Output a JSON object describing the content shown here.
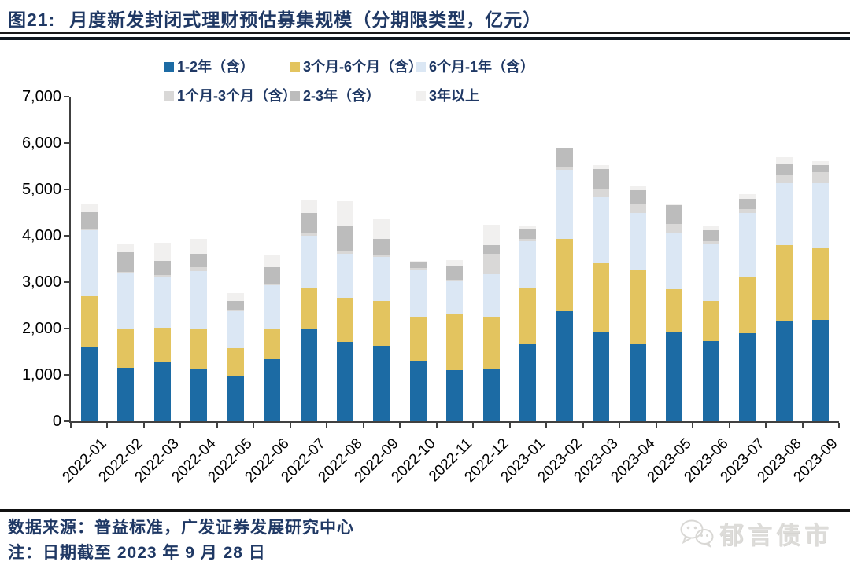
{
  "header": {
    "figure_label": "图21:",
    "title": "月度新发封闭式理财预估募集规模（分期限类型，亿元）"
  },
  "footer": {
    "source_line": "数据来源：普益标准，广发证券发展研究中心",
    "note_line": "注：日期截至 2023 年 9 月 28 日"
  },
  "logo": {
    "icon": "wechat-icon",
    "text": "郁言债市"
  },
  "colors": {
    "title_text": "#1F3864",
    "axis_line": "#404040",
    "axis_text": "#000000",
    "logo_gray": "#dddcd9"
  },
  "chart_data": {
    "type": "bar",
    "stacked": true,
    "title": "月度新发封闭式理财预估募集规模（分期限类型，亿元）",
    "xlabel": "",
    "ylabel": "",
    "ylim": [
      0,
      7000
    ],
    "ytick_step": 1000,
    "ytick_labels": [
      "0",
      "1,000",
      "2,000",
      "3,000",
      "4,000",
      "5,000",
      "6,000",
      "7,000"
    ],
    "grid": false,
    "legend_position": "top",
    "categories": [
      "2022-01",
      "2022-02",
      "2022-03",
      "2022-04",
      "2022-05",
      "2022-06",
      "2022-07",
      "2022-08",
      "2022-09",
      "2022-10",
      "2022-11",
      "2022-12",
      "2023-01",
      "2023-02",
      "2023-03",
      "2023-04",
      "2023-05",
      "2023-06",
      "2023-07",
      "2023-08",
      "2023-09"
    ],
    "series": [
      {
        "name": "1-2年（含）",
        "color": "#1C6BA4",
        "values": [
          1600,
          1150,
          1280,
          1130,
          980,
          1340,
          2000,
          1710,
          1620,
          1300,
          1110,
          1120,
          1660,
          2370,
          1910,
          1670,
          1920,
          1730,
          1900,
          2160,
          2180
        ]
      },
      {
        "name": "3个月-6个月（含）",
        "color": "#E3C45F",
        "values": [
          1110,
          860,
          740,
          850,
          590,
          640,
          860,
          960,
          980,
          950,
          1190,
          1140,
          1220,
          1560,
          1490,
          1600,
          920,
          870,
          1200,
          1640,
          1570
        ]
      },
      {
        "name": "6个月-1年（含）",
        "color": "#DBE7F4",
        "values": [
          1410,
          1180,
          1090,
          1260,
          800,
          950,
          1140,
          940,
          940,
          1020,
          710,
          910,
          1000,
          1490,
          1430,
          1220,
          1230,
          1210,
          1390,
          1340,
          1380
        ]
      },
      {
        "name": "1个月-3个月（含）",
        "color": "#D9D8D7",
        "values": [
          40,
          30,
          50,
          80,
          30,
          20,
          70,
          60,
          40,
          30,
          40,
          440,
          60,
          80,
          170,
          190,
          180,
          70,
          90,
          160,
          240
        ]
      },
      {
        "name": "2-3年（含）",
        "color": "#BCBCBC",
        "values": [
          340,
          430,
          290,
          300,
          200,
          380,
          430,
          560,
          350,
          130,
          300,
          180,
          220,
          400,
          440,
          310,
          410,
          240,
          210,
          240,
          160
        ]
      },
      {
        "name": "3年以上",
        "color": "#F1F0EF",
        "values": [
          200,
          190,
          390,
          310,
          160,
          270,
          260,
          520,
          420,
          20,
          130,
          450,
          40,
          0,
          90,
          80,
          40,
          100,
          110,
          160,
          90
        ]
      }
    ]
  }
}
